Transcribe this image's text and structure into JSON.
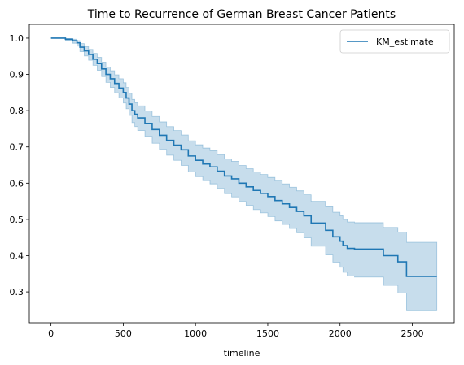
{
  "chart_data": {
    "type": "line",
    "title": "Time to Recurrence of German Breast Cancer Patients",
    "xlabel": "timeline",
    "ylabel": "",
    "xlim": [
      -150,
      2790
    ],
    "ylim": [
      0.215,
      1.038
    ],
    "x_ticks": [
      0,
      500,
      1000,
      1500,
      2000,
      2500
    ],
    "y_ticks": [
      0.3,
      0.4,
      0.5,
      0.6,
      0.7,
      0.8,
      0.9,
      1.0
    ],
    "x_tick_labels": [
      "0",
      "500",
      "1000",
      "1500",
      "2000",
      "2500"
    ],
    "y_tick_labels": [
      "0.3",
      "0.4",
      "0.5",
      "0.6",
      "0.7",
      "0.8",
      "0.9",
      "1.0"
    ],
    "grid": false,
    "legend_position": "top-right",
    "series": [
      {
        "name": "KM_estimate",
        "color": "#1f77b4",
        "step": true,
        "x": [
          0,
          100,
          150,
          180,
          200,
          230,
          260,
          290,
          320,
          350,
          380,
          410,
          440,
          470,
          500,
          520,
          540,
          560,
          580,
          600,
          650,
          700,
          750,
          800,
          850,
          900,
          950,
          1000,
          1050,
          1100,
          1150,
          1200,
          1250,
          1300,
          1350,
          1400,
          1450,
          1500,
          1550,
          1600,
          1650,
          1700,
          1750,
          1800,
          1900,
          1950,
          2000,
          2020,
          2050,
          2100,
          2300,
          2400,
          2460,
          2670
        ],
        "y": [
          1.0,
          0.997,
          0.993,
          0.987,
          0.975,
          0.965,
          0.955,
          0.942,
          0.93,
          0.915,
          0.9,
          0.888,
          0.875,
          0.862,
          0.85,
          0.835,
          0.818,
          0.8,
          0.79,
          0.78,
          0.765,
          0.748,
          0.732,
          0.718,
          0.705,
          0.692,
          0.675,
          0.663,
          0.653,
          0.645,
          0.633,
          0.62,
          0.612,
          0.6,
          0.59,
          0.58,
          0.572,
          0.563,
          0.552,
          0.543,
          0.533,
          0.522,
          0.51,
          0.49,
          0.47,
          0.452,
          0.44,
          0.428,
          0.42,
          0.418,
          0.4,
          0.383,
          0.343,
          0.343
        ],
        "ci_lower": [
          1.0,
          0.994,
          0.986,
          0.978,
          0.963,
          0.951,
          0.939,
          0.925,
          0.911,
          0.894,
          0.878,
          0.864,
          0.849,
          0.835,
          0.821,
          0.805,
          0.787,
          0.767,
          0.756,
          0.745,
          0.729,
          0.71,
          0.693,
          0.677,
          0.663,
          0.649,
          0.631,
          0.618,
          0.607,
          0.598,
          0.585,
          0.571,
          0.562,
          0.549,
          0.538,
          0.527,
          0.518,
          0.508,
          0.496,
          0.486,
          0.475,
          0.463,
          0.449,
          0.426,
          0.402,
          0.382,
          0.368,
          0.354,
          0.344,
          0.341,
          0.318,
          0.297,
          0.25,
          0.25
        ],
        "ci_upper": [
          1.0,
          0.999,
          0.997,
          0.993,
          0.985,
          0.977,
          0.969,
          0.958,
          0.947,
          0.934,
          0.92,
          0.91,
          0.899,
          0.888,
          0.877,
          0.864,
          0.848,
          0.831,
          0.822,
          0.813,
          0.799,
          0.784,
          0.769,
          0.756,
          0.745,
          0.733,
          0.717,
          0.706,
          0.697,
          0.69,
          0.679,
          0.667,
          0.66,
          0.649,
          0.64,
          0.631,
          0.624,
          0.616,
          0.606,
          0.598,
          0.589,
          0.579,
          0.568,
          0.55,
          0.535,
          0.52,
          0.51,
          0.5,
          0.493,
          0.491,
          0.478,
          0.465,
          0.437,
          0.437
        ]
      }
    ]
  }
}
